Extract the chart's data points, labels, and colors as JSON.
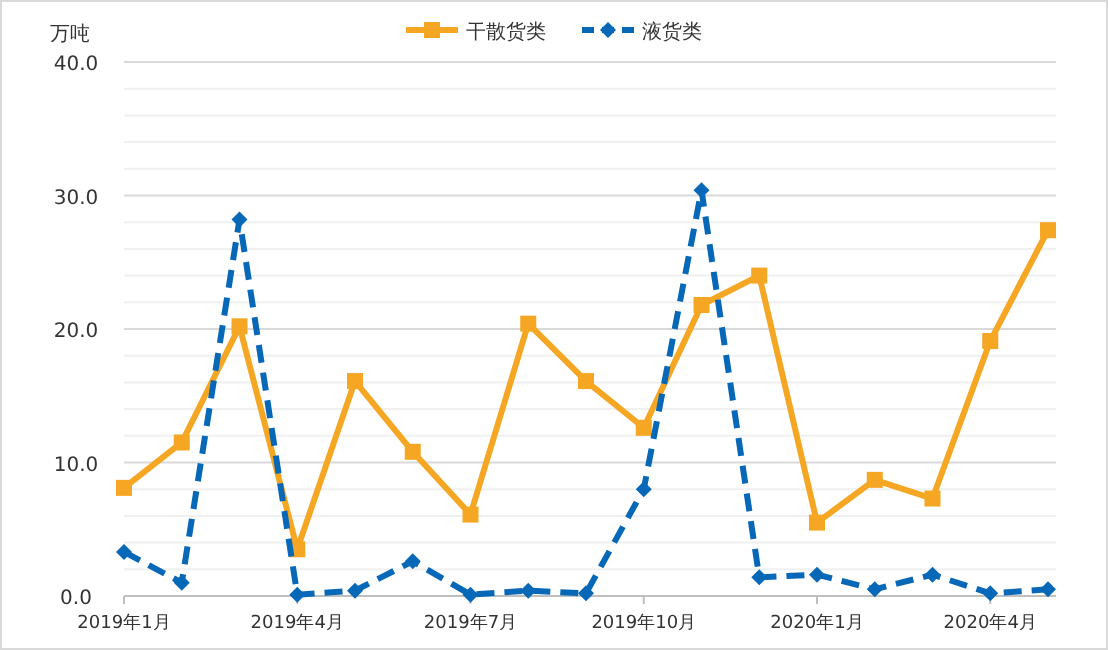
{
  "chart_data": {
    "type": "line",
    "ylabel": "万吨",
    "categories": [
      "2019年1月",
      null,
      null,
      "2019年4月",
      null,
      null,
      "2019年7月",
      null,
      null,
      "2019年10月",
      null,
      null,
      "2020年1月",
      null,
      null,
      "2020年4月",
      null
    ],
    "series": [
      {
        "name": "干散货类",
        "color": "#f5a623",
        "marker": "square",
        "line_style": "solid",
        "values": [
          8.1,
          11.5,
          20.2,
          3.5,
          16.1,
          10.8,
          6.1,
          20.4,
          16.1,
          12.6,
          21.8,
          24.0,
          5.5,
          8.7,
          7.3,
          19.1,
          27.4
        ]
      },
      {
        "name": "液货类",
        "color": "#0868b8",
        "marker": "diamond",
        "line_style": "dashed",
        "values": [
          3.3,
          1.0,
          28.2,
          0.1,
          0.4,
          2.6,
          0.1,
          0.4,
          0.2,
          8.0,
          30.4,
          1.4,
          1.6,
          0.5,
          1.6,
          0.2,
          0.5
        ]
      }
    ],
    "ylim": [
      0,
      40
    ],
    "yticks": [
      {
        "value": 0,
        "label": "0.0"
      },
      {
        "value": 2,
        "label": null
      },
      {
        "value": 4,
        "label": null
      },
      {
        "value": 6,
        "label": null
      },
      {
        "value": 8,
        "label": null
      },
      {
        "value": 10,
        "label": "10.0"
      },
      {
        "value": 12,
        "label": null
      },
      {
        "value": 14,
        "label": null
      },
      {
        "value": 16,
        "label": null
      },
      {
        "value": 18,
        "label": null
      },
      {
        "value": 20,
        "label": "20.0"
      },
      {
        "value": 22,
        "label": null
      },
      {
        "value": 24,
        "label": null
      },
      {
        "value": 26,
        "label": null
      },
      {
        "value": 28,
        "label": null
      },
      {
        "value": 30,
        "label": "30.0"
      },
      {
        "value": 32,
        "label": null
      },
      {
        "value": 34,
        "label": null
      },
      {
        "value": 36,
        "label": null
      },
      {
        "value": 38,
        "label": null
      },
      {
        "value": 40,
        "label": "40.0"
      }
    ],
    "grid": "y",
    "legend": "top"
  }
}
